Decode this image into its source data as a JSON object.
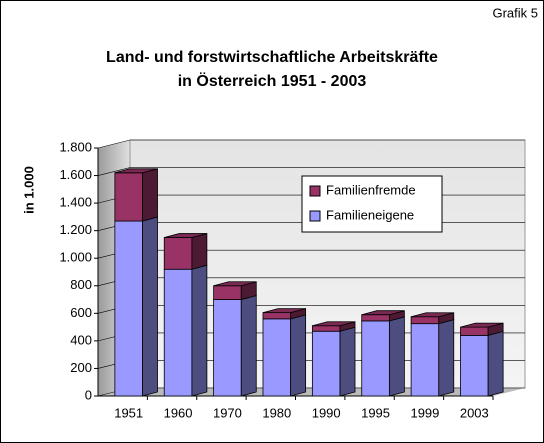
{
  "chart_data": {
    "type": "bar",
    "stacked": true,
    "title": "Land- und forstwirtschaftliche Arbeitskräfte",
    "subtitle": "in Österreich 1951 - 2003",
    "annotation": "Grafik 5",
    "y_label": "in 1.000",
    "categories": [
      "1951",
      "1960",
      "1970",
      "1980",
      "1990",
      "1995",
      "1999",
      "2003"
    ],
    "series": [
      {
        "name": "Familieneigene",
        "color": "#9999ff",
        "values": [
          1270,
          920,
          700,
          560,
          470,
          545,
          525,
          440
        ]
      },
      {
        "name": "Familienfremde",
        "color": "#993366",
        "values": [
          350,
          230,
          100,
          45,
          40,
          45,
          50,
          60
        ]
      }
    ],
    "ylim": [
      0,
      1800
    ],
    "yticks": [
      0,
      200,
      400,
      600,
      800,
      {
        "value": 1000,
        "label": "1.000"
      },
      {
        "value": 1200,
        "label": "1.200"
      },
      {
        "value": 1400,
        "label": "1.400"
      },
      {
        "value": 1600,
        "label": "1.600"
      },
      {
        "value": 1800,
        "label": "1.800"
      }
    ],
    "grid": true,
    "legend": "upper right"
  }
}
